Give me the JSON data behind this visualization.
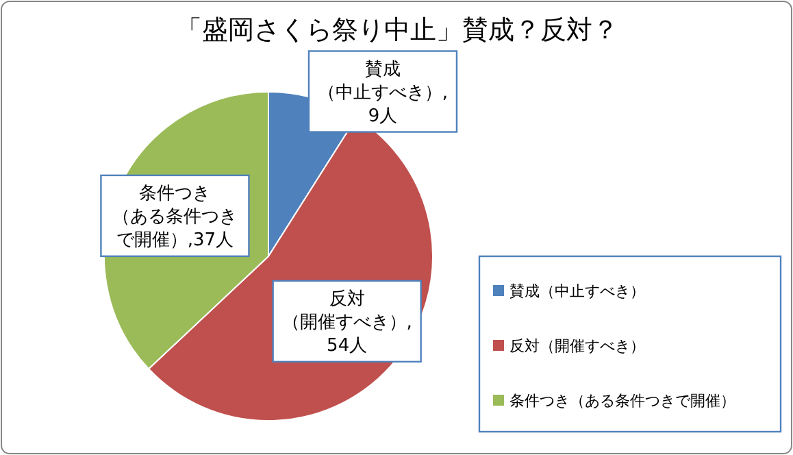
{
  "chart_data": {
    "type": "pie",
    "title": "「盛岡さくら祭り中止」賛成？反対？",
    "categories": [
      "賛成（中止すべき）",
      "反対（開催すべき）",
      "条件つき（ある条件つきで開催）"
    ],
    "values": [
      9,
      54,
      37
    ],
    "colors": [
      "#4f81bd",
      "#c0504d",
      "#9bbb59"
    ],
    "value_labels": [
      "賛成（中止すべき）,9人",
      "反対（開催すべき）,54人",
      "条件つき（ある条件つきで開催）,37人"
    ],
    "legend": "right"
  }
}
